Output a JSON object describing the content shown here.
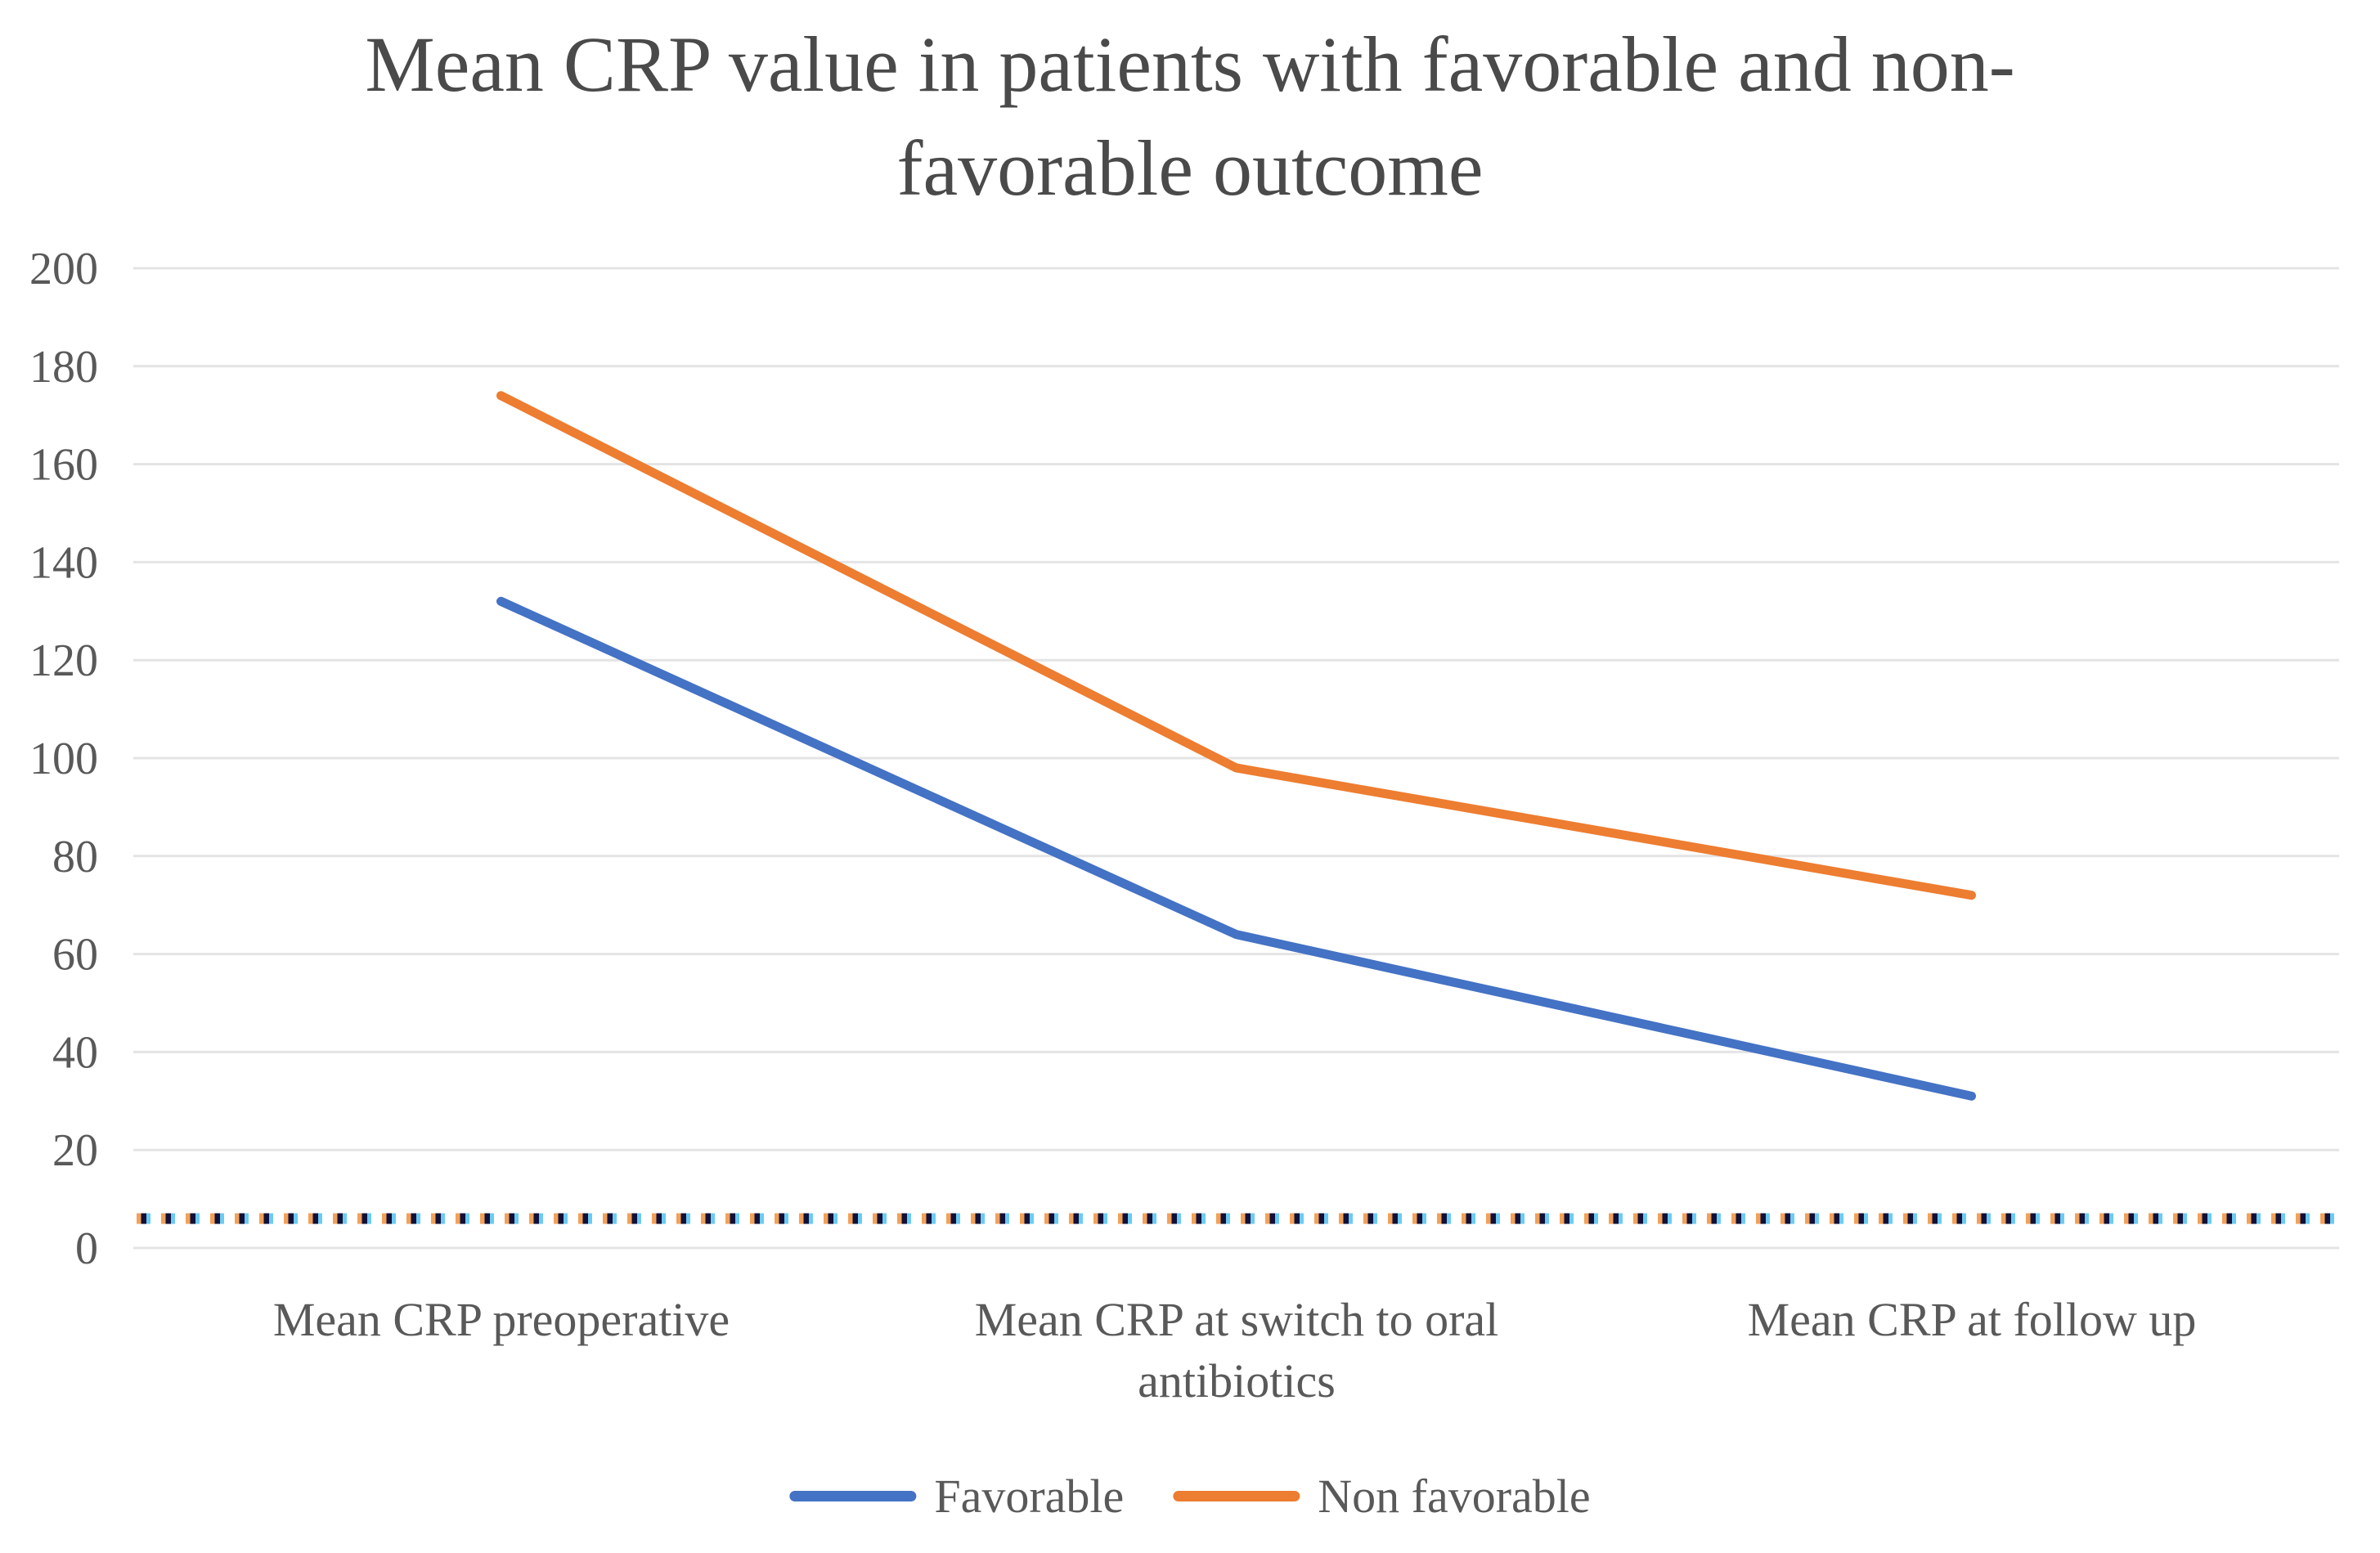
{
  "title": {
    "full": "Mean CRP value in patients with favorable and non-favorable outcome",
    "line1": "Mean CRP value in patients with favorable and non-",
    "line2": "favorable outcome"
  },
  "chart_data": {
    "type": "line",
    "title": "Mean CRP value in patients with favorable and non-favorable outcome",
    "categories": [
      "Mean CRP preoperative",
      "Mean CRP at switch to oral antibiotics",
      "Mean CRP at follow up"
    ],
    "series": [
      {
        "name": "Favorable",
        "color": "#4472C4",
        "values": [
          132,
          64,
          31
        ]
      },
      {
        "name": "Non favorable",
        "color": "#ED7D31",
        "values": [
          174,
          98,
          72
        ]
      }
    ],
    "reference_line": {
      "value": 6,
      "style": "dotted",
      "dash_colors": [
        "#F2A159",
        "#10103A",
        "#6CCBF2"
      ]
    },
    "y_axis": {
      "min": 0,
      "max": 200,
      "step": 20,
      "tick_labels": [
        "0",
        "20",
        "40",
        "60",
        "80",
        "100",
        "120",
        "140",
        "160",
        "180",
        "200"
      ]
    },
    "x_axis": {
      "label_lines": [
        "Mean CRP preoperative",
        "Mean CRP at switch to oral | antibiotics",
        "Mean CRP at follow up"
      ]
    },
    "grid": true,
    "legend_position": "bottom",
    "gridline_color": "#e4e4e4",
    "text_color": "#595959",
    "title_color": "#4a4a4a"
  },
  "legend": {
    "items": [
      {
        "label": "Favorable",
        "color": "#4472C4"
      },
      {
        "label": "Non favorable",
        "color": "#ED7D31"
      }
    ]
  }
}
